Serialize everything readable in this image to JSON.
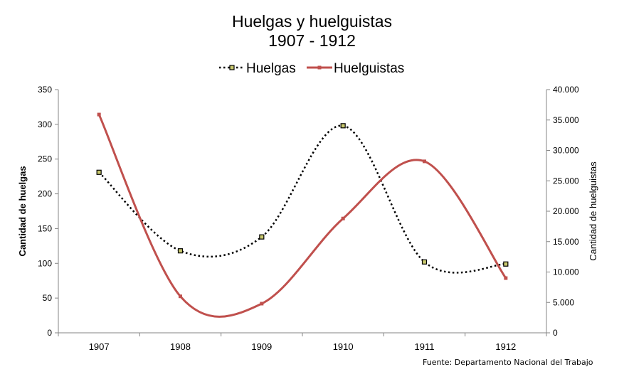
{
  "chart_data": {
    "type": "line",
    "title": "Huelgas y huelguistas",
    "subtitle": "1907 - 1912",
    "categories": [
      "1907",
      "1908",
      "1909",
      "1910",
      "1911",
      "1912"
    ],
    "series": [
      {
        "name": "Huelgas",
        "axis": "left",
        "values": [
          231,
          118,
          138,
          298,
          102,
          99
        ],
        "color": "#000000",
        "line_style": "dotted",
        "marker": "square",
        "marker_fill": "#c8c86e"
      },
      {
        "name": "Huelguistas",
        "axis": "right",
        "values": [
          35900,
          6000,
          4800,
          18800,
          28200,
          9000
        ],
        "color": "#c0504d",
        "line_style": "solid",
        "marker": "square"
      }
    ],
    "ylabel": "Cantidad de huelgas",
    "ylabel_right": "Cantidad de huelguistas",
    "ylim": [
      0,
      350
    ],
    "ylim_right": [
      0,
      40000
    ],
    "yticks": [
      "0",
      "50",
      "100",
      "150",
      "200",
      "250",
      "300",
      "350"
    ],
    "yticks_right": [
      "0",
      "5.000",
      "10.000",
      "15.000",
      "20.000",
      "25.000",
      "30.000",
      "35.000",
      "40.000"
    ],
    "legend": "top",
    "grid": false
  },
  "source_note": "Fuente: Departamento Nacional del Trabajo"
}
